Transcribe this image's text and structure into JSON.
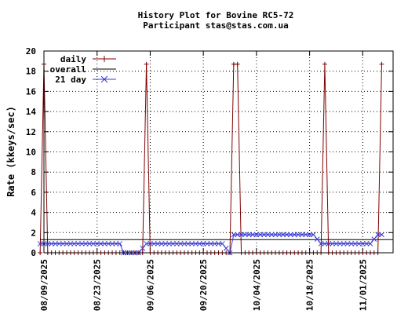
{
  "chart_data": {
    "type": "line",
    "title": "History Plot for Bovine RC5-72",
    "subtitle": "Participant stas@stas.com.ua",
    "xlabel": "",
    "ylabel": "Rate (kkeys/sec)",
    "ylim": [
      0,
      20
    ],
    "yticks": [
      "0",
      "2",
      "4",
      "6",
      "8",
      "10",
      "12",
      "14",
      "16",
      "18",
      "20"
    ],
    "xlim": [
      "2025-08-09",
      "2025-11-09"
    ],
    "xticks": [
      "08/09/2025",
      "08/23/2025",
      "09/06/2025",
      "09/20/2025",
      "10/04/2025",
      "10/18/2025",
      "11/01/2025"
    ],
    "grid": true,
    "legend_position": "top-left",
    "series": [
      {
        "name": "daily",
        "color": "#800000",
        "marker": "plus",
        "x": [
          "2025-08-08",
          "2025-08-09",
          "2025-08-10",
          "2025-08-11",
          "2025-09-03",
          "2025-09-04",
          "2025-09-05",
          "2025-09-06",
          "2025-09-26",
          "2025-09-27",
          "2025-09-28",
          "2025-09-29",
          "2025-09-30",
          "2025-10-20",
          "2025-10-21",
          "2025-10-22",
          "2025-10-23",
          "2025-11-04",
          "2025-11-05",
          "2025-11-06"
        ],
        "y": [
          0,
          18.7,
          0,
          0,
          0,
          0,
          18.7,
          0,
          0,
          0,
          18.7,
          18.7,
          0,
          0,
          0,
          18.7,
          0,
          0,
          0,
          18.7
        ]
      },
      {
        "name": "overall",
        "color": "#000000",
        "marker": "none",
        "x": [
          "2025-08-08",
          "2025-11-09"
        ],
        "y": [
          1.3,
          1.3
        ]
      },
      {
        "name": "21 day",
        "color": "#3b3bd8",
        "marker": "x",
        "x": [
          "2025-08-08",
          "2025-08-10",
          "2025-08-29",
          "2025-08-30",
          "2025-09-03",
          "2025-09-05",
          "2025-09-25",
          "2025-09-27",
          "2025-09-28",
          "2025-10-19",
          "2025-10-21",
          "2025-11-03",
          "2025-11-05",
          "2025-11-06"
        ],
        "y": [
          0.9,
          0.9,
          0.9,
          0,
          0,
          0.9,
          0.9,
          0,
          1.8,
          1.8,
          0.9,
          0.9,
          1.8,
          1.8
        ]
      }
    ]
  }
}
